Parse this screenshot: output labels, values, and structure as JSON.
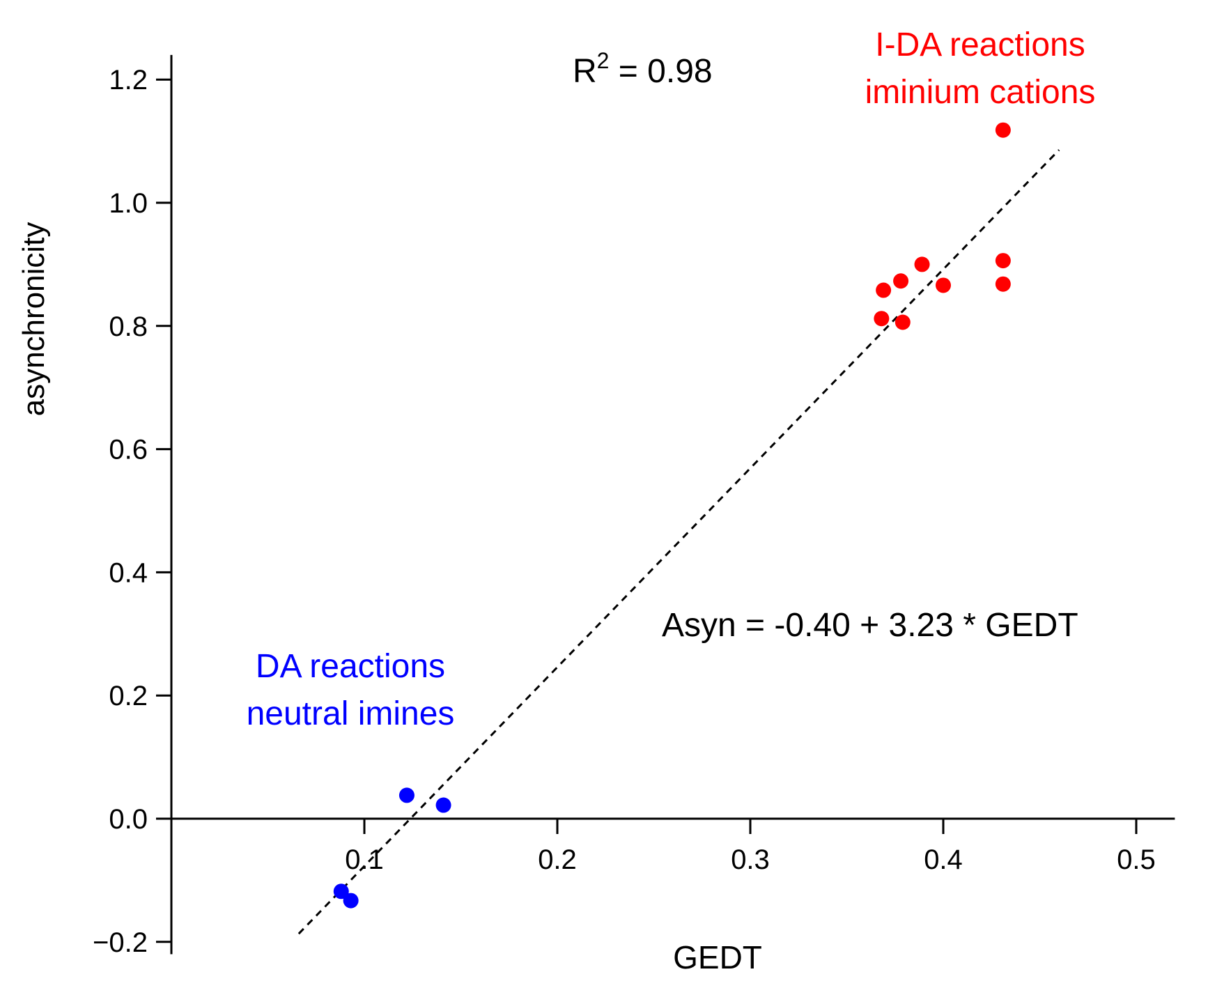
{
  "chart_data": {
    "type": "scatter",
    "title": "",
    "xlabel": "GEDT",
    "ylabel": "asynchronicity",
    "xlim": [
      0.0,
      0.52
    ],
    "ylim": [
      -0.22,
      1.24
    ],
    "grid": false,
    "x_ticks": [
      0.1,
      0.2,
      0.3,
      0.4,
      0.5
    ],
    "x_tick_labels": [
      "0.1",
      "0.2",
      "0.3",
      "0.4",
      "0.5"
    ],
    "y_ticks": [
      -0.2,
      0.0,
      0.2,
      0.4,
      0.6,
      0.8,
      1.0,
      1.2
    ],
    "y_tick_labels": [
      "−0.2",
      "0.0",
      "0.2",
      "0.4",
      "0.6",
      "0.8",
      "1.0",
      "1.2"
    ],
    "series": [
      {
        "name": "DA reactions neutral imines",
        "color": "#0000ff",
        "points": [
          {
            "x": 0.088,
            "y": -0.118
          },
          {
            "x": 0.093,
            "y": -0.133
          },
          {
            "x": 0.122,
            "y": 0.038
          },
          {
            "x": 0.141,
            "y": 0.022
          }
        ]
      },
      {
        "name": "I-DA reactions iminium cations",
        "color": "#ff0000",
        "points": [
          {
            "x": 0.368,
            "y": 0.812
          },
          {
            "x": 0.369,
            "y": 0.858
          },
          {
            "x": 0.378,
            "y": 0.873
          },
          {
            "x": 0.379,
            "y": 0.806
          },
          {
            "x": 0.389,
            "y": 0.9
          },
          {
            "x": 0.4,
            "y": 0.866
          },
          {
            "x": 0.431,
            "y": 1.118
          },
          {
            "x": 0.431,
            "y": 0.906
          },
          {
            "x": 0.431,
            "y": 0.868
          }
        ]
      }
    ],
    "fit_line": {
      "intercept": -0.4,
      "slope": 3.23,
      "x_range": [
        0.066,
        0.46
      ],
      "style": "dashed",
      "color": "#000000"
    },
    "annotations": {
      "r2_prefix": "R",
      "r2_sup": "2",
      "r2_suffix": " = 0.98",
      "equation": "Asyn = -0.40 + 3.23 * GEDT",
      "blue_line1": "DA reactions",
      "blue_line2": "neutral imines",
      "red_line1": "I-DA reactions",
      "red_line2": "iminium cations"
    }
  }
}
